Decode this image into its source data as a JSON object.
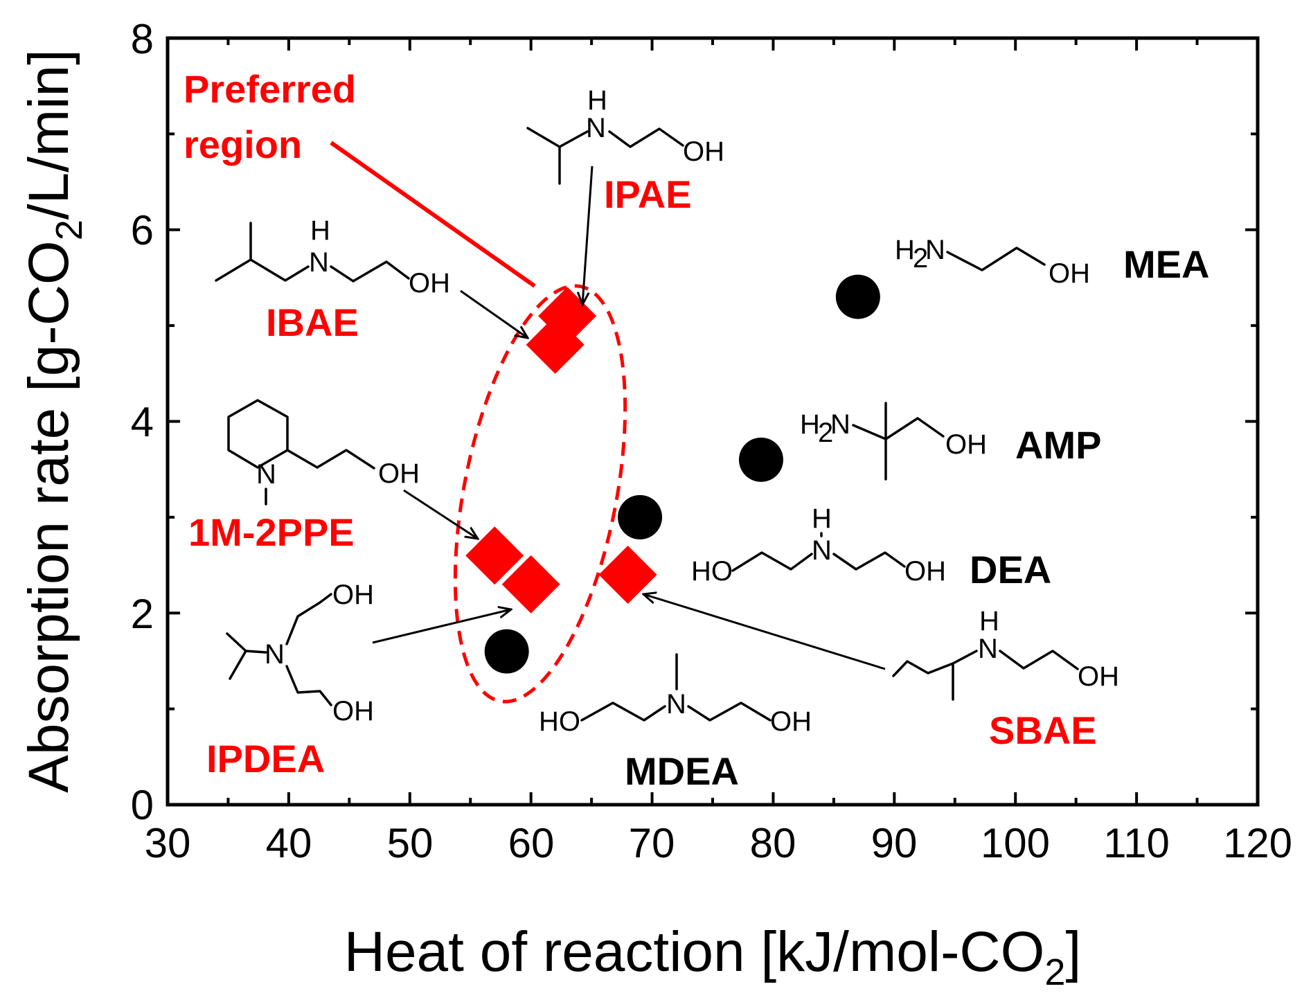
{
  "chart_data": {
    "type": "scatter",
    "xlabel": "Heat of reaction [kJ/mol-CO2]",
    "ylabel": "Absorption rate [g-CO2/L/min]",
    "xlim": [
      30,
      120
    ],
    "ylim": [
      0,
      8
    ],
    "xticks": [
      "30",
      "40",
      "50",
      "60",
      "70",
      "80",
      "90",
      "100",
      "110",
      "120"
    ],
    "yticks": [
      "0",
      "2",
      "4",
      "6",
      "8"
    ],
    "grid": false,
    "colors": {
      "reference": "#000000",
      "new": "#ff0000"
    },
    "series": [
      {
        "marker": "circle",
        "color": "#000000",
        "points": [
          {
            "name": "MEA",
            "x": 87,
            "y": 5.3
          },
          {
            "name": "AMP",
            "x": 79,
            "y": 3.6
          },
          {
            "name": "DEA",
            "x": 69,
            "y": 3.0
          },
          {
            "name": "MDEA",
            "x": 58,
            "y": 1.6
          }
        ]
      },
      {
        "marker": "diamond",
        "color": "#ff0000",
        "points": [
          {
            "name": "IPAE",
            "x": 63,
            "y": 5.1
          },
          {
            "name": "IBAE",
            "x": 62,
            "y": 4.8
          },
          {
            "name": "1M-2PPE",
            "x": 57,
            "y": 2.6
          },
          {
            "name": "IPDEA",
            "x": 60,
            "y": 2.3
          },
          {
            "name": "SBAE",
            "x": 68,
            "y": 2.4
          }
        ]
      }
    ],
    "annotations": {
      "preferred_region": "Preferred region",
      "preferred_region_lines": [
        "Preferred",
        "region"
      ]
    }
  },
  "structure_atoms": {
    "OH": "OH",
    "HO": "HO",
    "N": "N",
    "H": "H",
    "H2N_H": "H",
    "H2N_2": "2",
    "H2N_N": "N"
  }
}
